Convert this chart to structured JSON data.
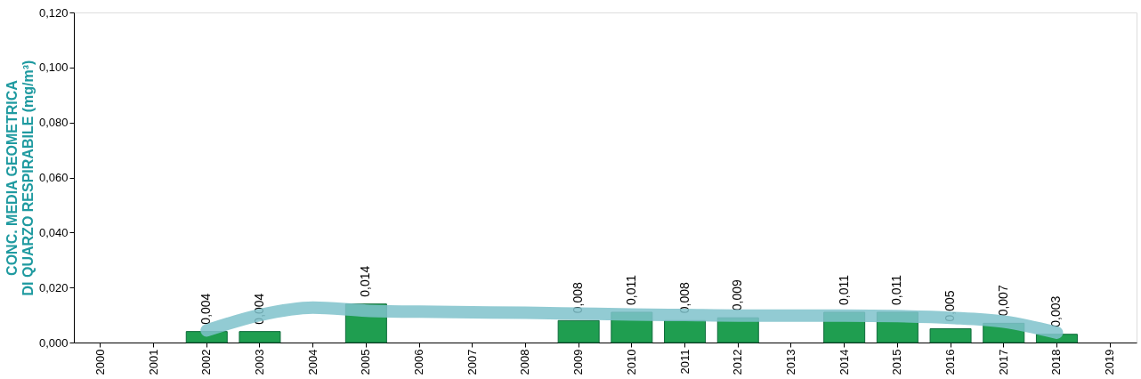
{
  "chart_data": {
    "type": "bar",
    "ylabel": "CONC. MEDIA GEOMETRICA\nDI QUARZO RESPIRABILE (mg/m³)",
    "categories": [
      "2000",
      "2001",
      "2002",
      "2003",
      "2004",
      "2005",
      "2006",
      "2007",
      "2008",
      "2009",
      "2010",
      "2011",
      "2012",
      "2013",
      "2014",
      "2015",
      "2016",
      "2017",
      "2018",
      "2019"
    ],
    "series": [
      {
        "color": "#1f9e50",
        "values": [
          null,
          null,
          0.004,
          0.004,
          null,
          0.014,
          null,
          null,
          null,
          0.008,
          0.011,
          0.008,
          0.009,
          null,
          0.011,
          0.011,
          0.005,
          0.007,
          0.003,
          null
        ],
        "value_labels": [
          null,
          null,
          "0,004",
          "0,004",
          null,
          "0,014",
          null,
          null,
          null,
          "0,008",
          "0,011",
          "0,008",
          "0,009",
          null,
          "0,011",
          "0,011",
          "0,005",
          "0,007",
          "0,003",
          null
        ]
      },
      {
        "type": "line",
        "color": "#7fc2cb",
        "values": [
          null,
          null,
          0.0044,
          0.01,
          0.0127,
          0.0116,
          0.0112,
          0.011,
          0.0108,
          0.0105,
          0.0102,
          0.01,
          0.0098,
          0.0098,
          0.0098,
          0.0096,
          0.009,
          0.0076,
          0.0036,
          null
        ]
      }
    ],
    "ylim": [
      0,
      0.12
    ],
    "yticks": [
      {
        "value": 0,
        "label": "0,000"
      },
      {
        "value": 0.02,
        "label": "0,020"
      },
      {
        "value": 0.04,
        "label": "0,040"
      },
      {
        "value": 0.06,
        "label": "0,060"
      },
      {
        "value": 0.08,
        "label": "0,080"
      },
      {
        "value": 0.1,
        "label": "0,100"
      },
      {
        "value": 0.12,
        "label": "0,120"
      }
    ],
    "grid": false
  }
}
